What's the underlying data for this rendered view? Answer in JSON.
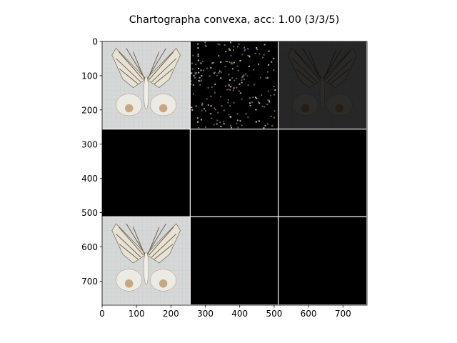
{
  "figure": {
    "title": "Chartographa convexa, acc: 1.00 (3/3/5)"
  },
  "chart_data": {
    "type": "image-grid",
    "title": "Chartographa convexa, acc: 1.00 (3/3/5)",
    "xlabel": "",
    "ylabel": "",
    "xlim": [
      0,
      770
    ],
    "ylim": [
      770,
      0
    ],
    "x_ticks": [
      0,
      100,
      200,
      300,
      400,
      500,
      600,
      700
    ],
    "y_ticks": [
      0,
      100,
      200,
      300,
      400,
      500,
      600,
      700
    ],
    "grid": false,
    "tile_size": 256,
    "grid_rows": 3,
    "grid_cols": 3,
    "tiles": [
      {
        "row": 0,
        "col": 0,
        "content": "moth-photo"
      },
      {
        "row": 0,
        "col": 1,
        "content": "sparse-attribution-map"
      },
      {
        "row": 0,
        "col": 2,
        "content": "dim-masked-photo"
      },
      {
        "row": 1,
        "col": 0,
        "content": "black"
      },
      {
        "row": 1,
        "col": 1,
        "content": "black"
      },
      {
        "row": 1,
        "col": 2,
        "content": "black"
      },
      {
        "row": 2,
        "col": 0,
        "content": "moth-photo"
      },
      {
        "row": 2,
        "col": 1,
        "content": "black"
      },
      {
        "row": 2,
        "col": 2,
        "content": "black"
      }
    ]
  }
}
